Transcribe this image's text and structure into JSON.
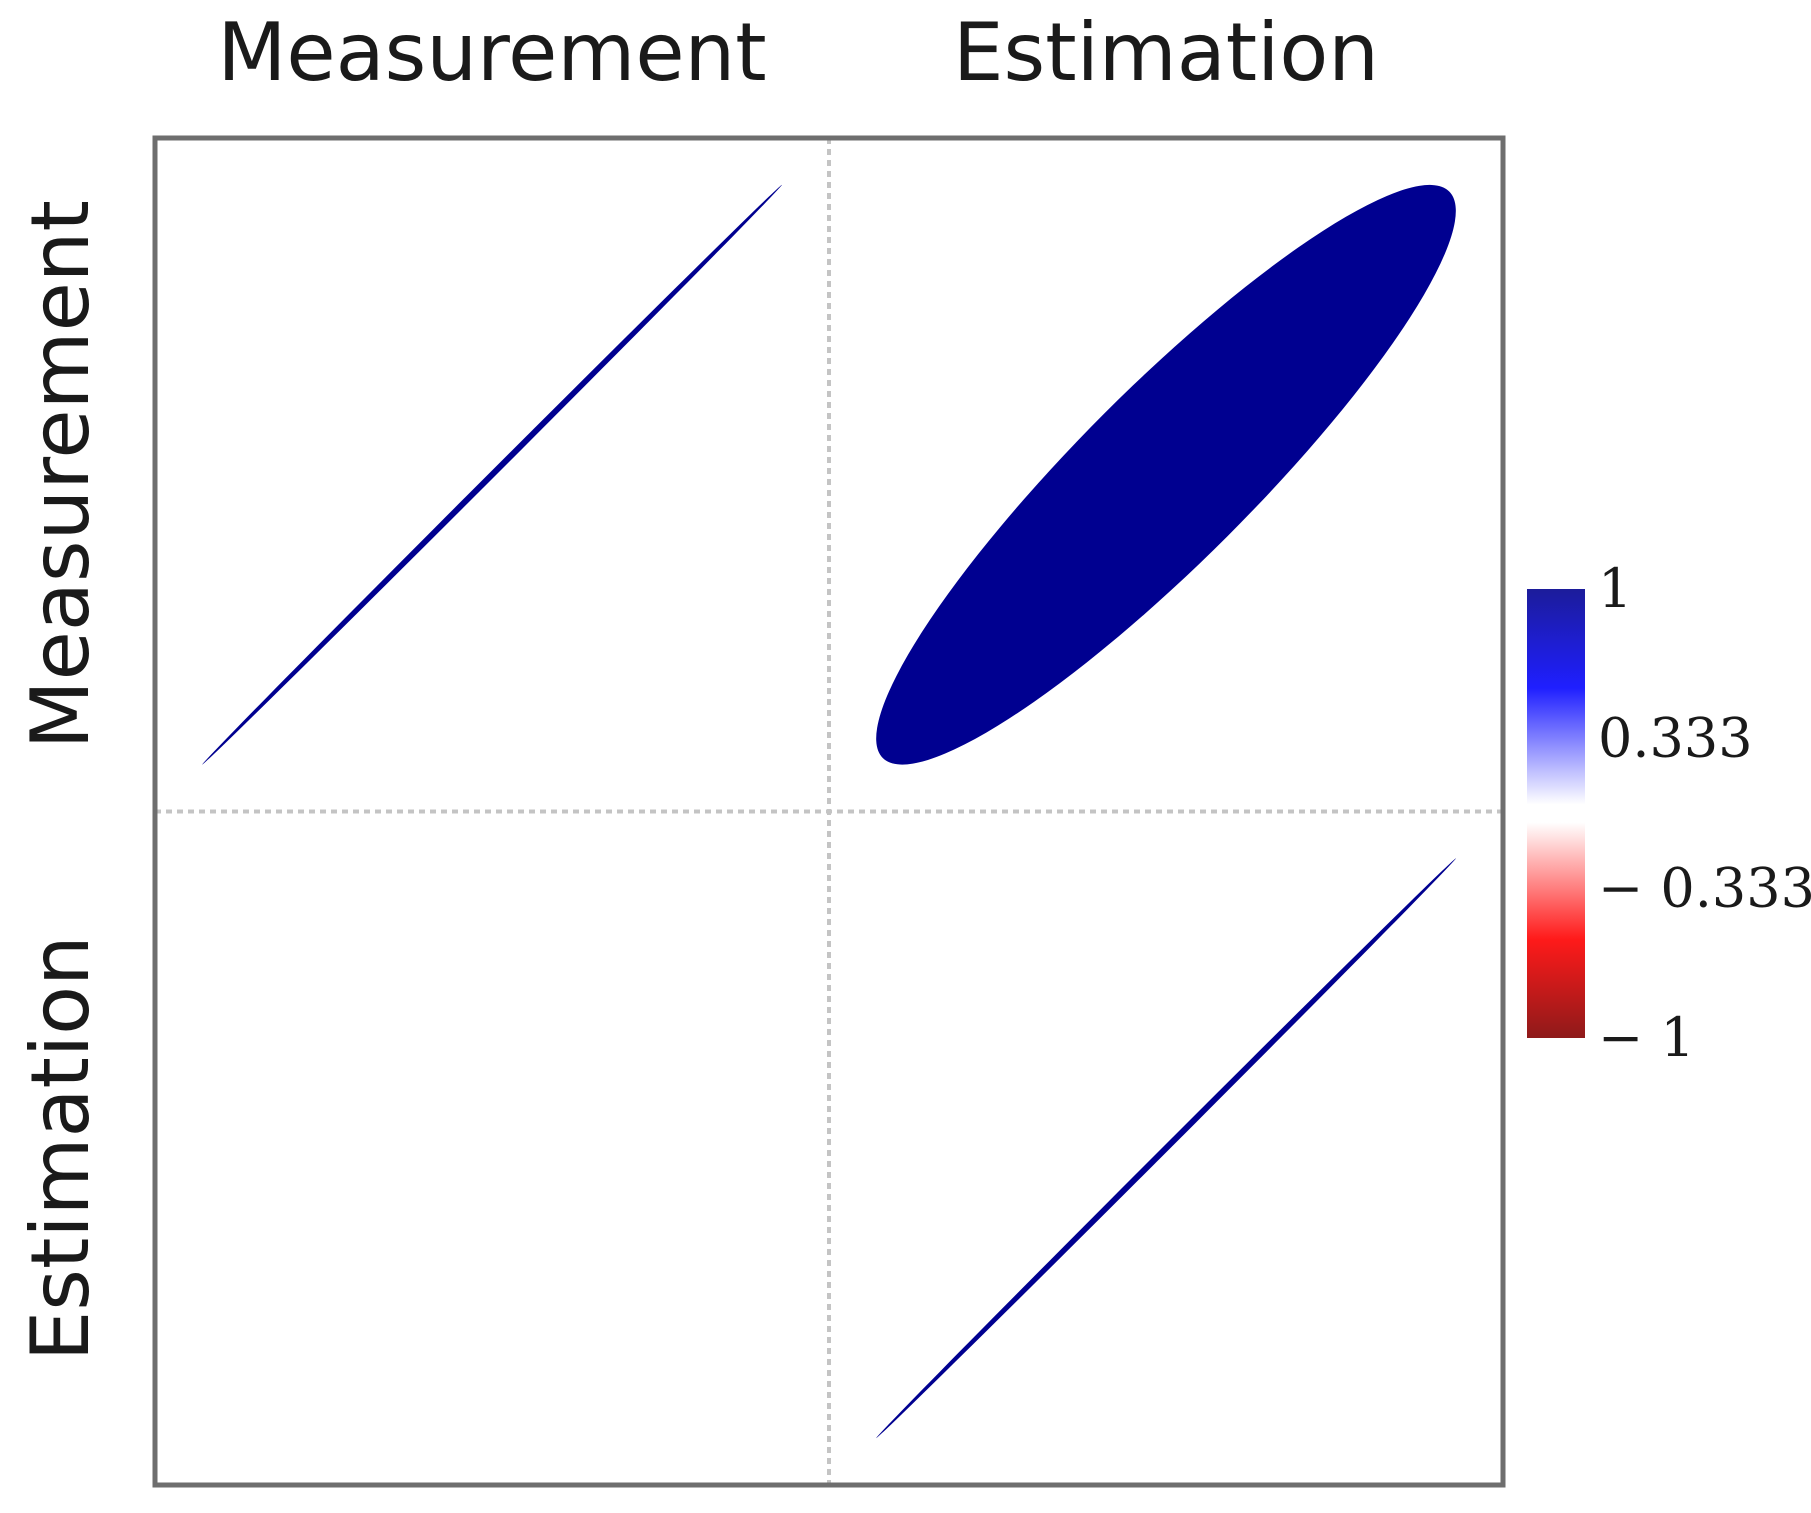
{
  "chart_data": {
    "type": "heatmap",
    "style": "correlation-ellipse-matrix",
    "variables": [
      "Measurement",
      "Estimation"
    ],
    "matrix": [
      [
        1,
        0.91
      ],
      [
        null,
        1
      ]
    ],
    "lower_triangle_shown": false,
    "grid": true,
    "colorbar": {
      "position": "right",
      "range": [
        -1,
        1
      ],
      "ticks": [
        1,
        0.333,
        -0.333,
        -1
      ],
      "tick_labels": [
        "1",
        "0.333",
        "− 0.333",
        "− 1"
      ],
      "colors": [
        "#67001f",
        "#ff0000",
        "#ffffff",
        "#0000ff",
        "#000080"
      ]
    },
    "colors": {
      "positive": "#000090",
      "frame": "#6e6e6e",
      "grid": "#c4c4c4"
    }
  }
}
